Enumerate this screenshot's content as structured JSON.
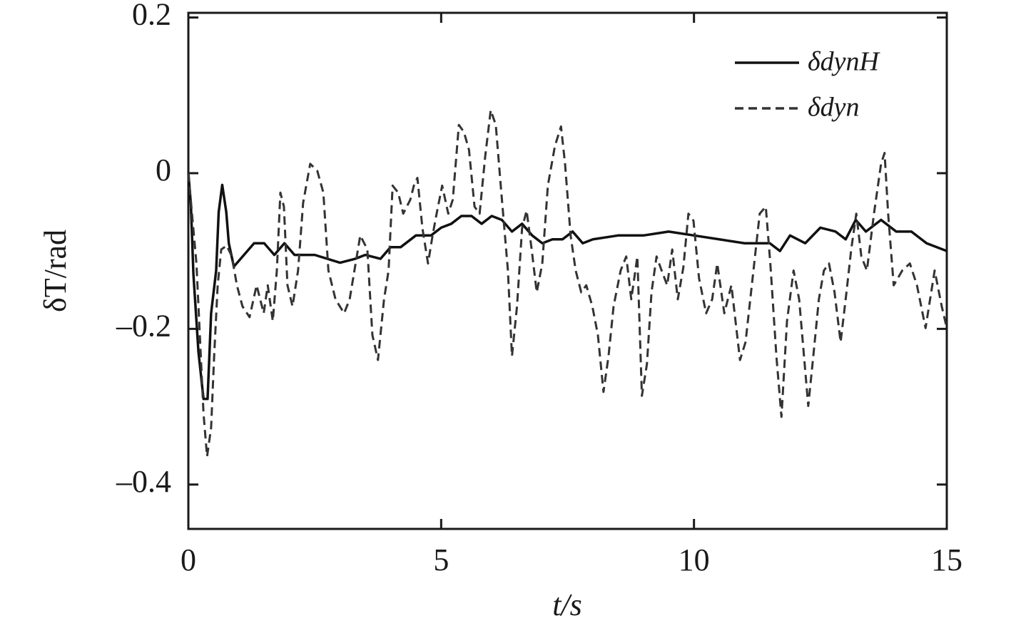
{
  "chart_data": {
    "type": "line",
    "xlabel": "t/s",
    "ylabel": "δT/rad",
    "xlim": [
      0,
      15
    ],
    "ylim": [
      -0.457,
      0.206
    ],
    "xticks": [
      0,
      5,
      10,
      15
    ],
    "yticks": [
      {
        "value": -0.4,
        "label": "–0.4"
      },
      {
        "value": -0.2,
        "label": "–0.2"
      },
      0,
      0.2
    ],
    "legend": "upper right",
    "series": [
      {
        "name": "δdynH",
        "color": "#111111",
        "line_style": "solid",
        "x": [
          0,
          0.05,
          0.1,
          0.2,
          0.3,
          0.38,
          0.45,
          0.55,
          0.6,
          0.67,
          0.75,
          0.8,
          0.9,
          1.1,
          1.3,
          1.5,
          1.7,
          1.9,
          2.1,
          2.5,
          3.0,
          3.3,
          3.5,
          3.8,
          4.0,
          4.2,
          4.5,
          4.8,
          5.0,
          5.2,
          5.4,
          5.6,
          5.8,
          6.0,
          6.2,
          6.4,
          6.6,
          6.8,
          7.0,
          7.2,
          7.4,
          7.6,
          7.8,
          8.0,
          8.5,
          9.0,
          9.5,
          10.0,
          10.5,
          11.0,
          11.5,
          11.7,
          11.9,
          12.2,
          12.5,
          12.8,
          13.0,
          13.2,
          13.4,
          13.7,
          14.0,
          14.3,
          14.6,
          15.0
        ],
        "values": [
          0,
          -0.04,
          -0.13,
          -0.23,
          -0.29,
          -0.29,
          -0.18,
          -0.125,
          -0.05,
          -0.015,
          -0.05,
          -0.09,
          -0.12,
          -0.105,
          -0.09,
          -0.09,
          -0.105,
          -0.09,
          -0.105,
          -0.105,
          -0.115,
          -0.11,
          -0.105,
          -0.11,
          -0.095,
          -0.095,
          -0.08,
          -0.08,
          -0.07,
          -0.065,
          -0.055,
          -0.055,
          -0.065,
          -0.055,
          -0.06,
          -0.075,
          -0.065,
          -0.08,
          -0.09,
          -0.085,
          -0.085,
          -0.075,
          -0.09,
          -0.085,
          -0.08,
          -0.08,
          -0.075,
          -0.08,
          -0.085,
          -0.09,
          -0.09,
          -0.1,
          -0.08,
          -0.09,
          -0.07,
          -0.075,
          -0.085,
          -0.06,
          -0.075,
          -0.06,
          -0.075,
          -0.075,
          -0.09,
          -0.1
        ]
      },
      {
        "name": "δdyn",
        "color": "#333333",
        "line_style": "dashed",
        "x": [
          0,
          0.16,
          0.3,
          0.37,
          0.45,
          0.51,
          0.58,
          0.65,
          0.76,
          0.86,
          0.96,
          1.07,
          1.21,
          1.35,
          1.49,
          1.57,
          1.67,
          1.75,
          1.82,
          1.89,
          1.96,
          2.06,
          2.17,
          2.27,
          2.41,
          2.55,
          2.67,
          2.77,
          2.91,
          3.08,
          3.19,
          3.4,
          3.54,
          3.64,
          3.75,
          3.87,
          3.96,
          4.04,
          4.15,
          4.25,
          4.39,
          4.46,
          4.53,
          4.63,
          4.74,
          4.83,
          4.91,
          5.02,
          5.14,
          5.23,
          5.35,
          5.45,
          5.55,
          5.66,
          5.76,
          5.87,
          5.98,
          6.08,
          6.19,
          6.32,
          6.4,
          6.5,
          6.6,
          6.69,
          6.79,
          6.89,
          7.0,
          7.11,
          7.25,
          7.37,
          7.45,
          7.56,
          7.66,
          7.77,
          7.87,
          7.99,
          8.1,
          8.21,
          8.31,
          8.41,
          8.55,
          8.66,
          8.76,
          8.88,
          8.97,
          9.07,
          9.16,
          9.26,
          9.36,
          9.47,
          9.57,
          9.68,
          9.79,
          9.89,
          9.99,
          10.1,
          10.24,
          10.36,
          10.46,
          10.6,
          10.74,
          10.91,
          11.02,
          11.3,
          11.42,
          11.51,
          11.63,
          11.73,
          11.84,
          11.97,
          12.08,
          12.26,
          12.36,
          12.47,
          12.57,
          12.67,
          12.78,
          12.9,
          13.0,
          13.11,
          13.21,
          13.31,
          13.42,
          13.56,
          13.7,
          13.77,
          13.84,
          13.95,
          14.12,
          14.27,
          14.41,
          14.58,
          14.76,
          14.9,
          15.0
        ],
        "values": [
          0,
          -0.116,
          -0.309,
          -0.364,
          -0.327,
          -0.235,
          -0.144,
          -0.098,
          -0.093,
          -0.107,
          -0.144,
          -0.171,
          -0.185,
          -0.144,
          -0.18,
          -0.144,
          -0.19,
          -0.125,
          -0.025,
          -0.043,
          -0.144,
          -0.171,
          -0.125,
          -0.038,
          0.012,
          0.003,
          -0.025,
          -0.125,
          -0.162,
          -0.18,
          -0.162,
          -0.08,
          -0.098,
          -0.208,
          -0.24,
          -0.162,
          -0.125,
          -0.016,
          -0.025,
          -0.052,
          -0.034,
          -0.016,
          -0.006,
          -0.071,
          -0.116,
          -0.08,
          -0.052,
          -0.016,
          -0.052,
          -0.034,
          0.062,
          0.053,
          0.03,
          -0.043,
          -0.052,
          0.021,
          0.081,
          0.062,
          -0.025,
          -0.125,
          -0.235,
          -0.171,
          -0.071,
          -0.048,
          -0.098,
          -0.153,
          -0.116,
          -0.016,
          0.035,
          0.06,
          0.012,
          -0.08,
          -0.125,
          -0.153,
          -0.144,
          -0.171,
          -0.208,
          -0.281,
          -0.235,
          -0.171,
          -0.125,
          -0.107,
          -0.162,
          -0.107,
          -0.286,
          -0.245,
          -0.153,
          -0.107,
          -0.125,
          -0.144,
          -0.098,
          -0.162,
          -0.121,
          -0.052,
          -0.061,
          -0.135,
          -0.18,
          -0.162,
          -0.116,
          -0.18,
          -0.144,
          -0.24,
          -0.217,
          -0.052,
          -0.043,
          -0.116,
          -0.235,
          -0.313,
          -0.19,
          -0.125,
          -0.162,
          -0.299,
          -0.235,
          -0.162,
          -0.125,
          -0.116,
          -0.153,
          -0.217,
          -0.162,
          -0.098,
          -0.052,
          -0.107,
          -0.125,
          -0.052,
          0.012,
          0.026,
          -0.052,
          -0.144,
          -0.125,
          -0.116,
          -0.144,
          -0.199,
          -0.125,
          -0.171,
          -0.199
        ]
      }
    ]
  }
}
